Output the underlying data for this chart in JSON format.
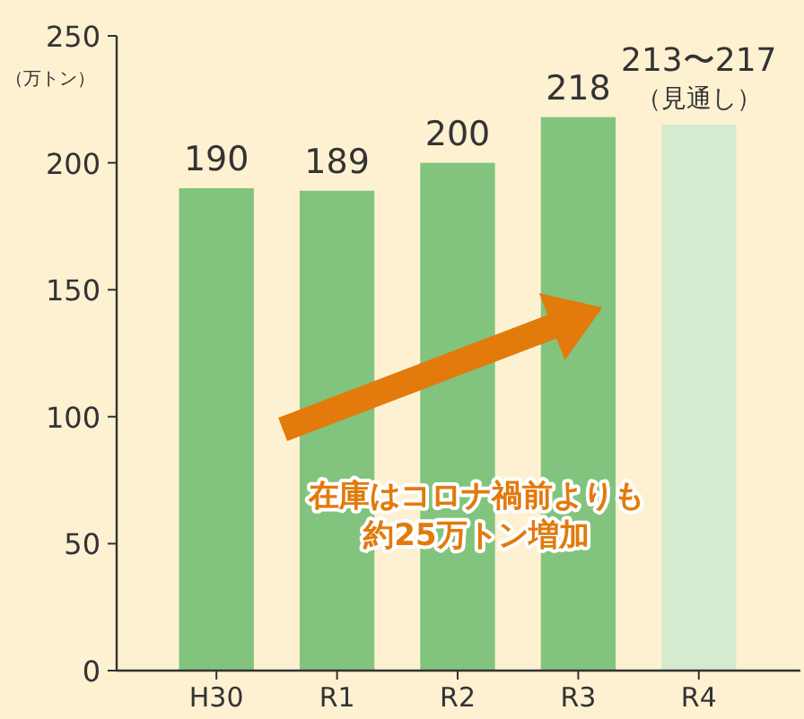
{
  "chart_data": {
    "type": "bar",
    "ylabel": "（万トン）",
    "categories": [
      "H30",
      "R1",
      "R2",
      "R3",
      "R4"
    ],
    "values": [
      190,
      189,
      200,
      218,
      215
    ],
    "colors": [
      "#82c47e",
      "#82c47e",
      "#82c47e",
      "#82c47e",
      "#d6ead0"
    ],
    "value_labels": [
      "190",
      "189",
      "200",
      "218",
      null
    ],
    "ylim": [
      0,
      250
    ],
    "yticks": [
      0,
      50,
      100,
      150,
      200,
      250
    ],
    "grid": false,
    "annotations": [
      {
        "text": "213〜217",
        "x": "R4",
        "y": 215
      },
      {
        "text": "（見通し）",
        "x": "R4",
        "y": 215
      },
      "在庫はコロナ禍前よりも",
      "約25万トン増加"
    ]
  }
}
